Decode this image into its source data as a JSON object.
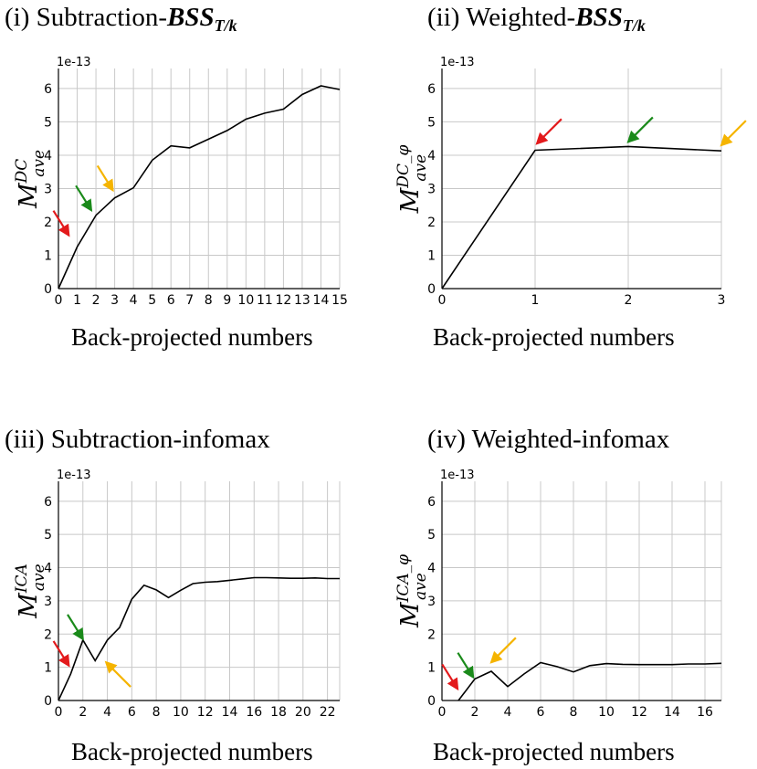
{
  "chart_data": [
    {
      "type": "line",
      "title_prefix": "(i) Subtraction-",
      "title_main": "BSS",
      "title_sub": "T/k",
      "ylabel_base": "M",
      "ylabel_sup": "DC",
      "ylabel_sub": "ave",
      "xlabel": "Back-projected numbers",
      "exponent": "1e-13",
      "x": [
        0,
        1,
        2,
        3,
        4,
        5,
        6,
        7,
        8,
        9,
        10,
        11,
        12,
        13,
        14,
        15
      ],
      "y": [
        0.0,
        1.25,
        2.2,
        2.72,
        3.02,
        3.85,
        4.28,
        4.22,
        4.48,
        4.74,
        5.08,
        5.26,
        5.38,
        5.82,
        6.08,
        5.97
      ],
      "xlim": [
        0,
        15
      ],
      "ylim": [
        0,
        6.6
      ],
      "xticks": [
        "0",
        "1",
        "2",
        "3",
        "4",
        "5",
        "6",
        "7",
        "8",
        "9",
        "10",
        "11",
        "12",
        "13",
        "14",
        "15"
      ],
      "yticks": [
        "0",
        "1",
        "2",
        "3",
        "4",
        "5",
        "6"
      ],
      "arrows": [
        {
          "color": "#e31a1c",
          "x": 0.55,
          "y": 1.6,
          "direction": "down-right"
        },
        {
          "color": "#1a8a1a",
          "x": 1.75,
          "y": 2.35,
          "direction": "down-right"
        },
        {
          "color": "#f5b400",
          "x": 2.9,
          "y": 2.95,
          "direction": "down-right"
        }
      ]
    },
    {
      "type": "line",
      "title_prefix": "(ii) Weighted-",
      "title_main": "BSS",
      "title_sub": "T/k",
      "ylabel_base": "M",
      "ylabel_sup": "DC_φ",
      "ylabel_sub": "ave",
      "xlabel": "Back-projected numbers",
      "exponent": "1e-13",
      "x": [
        0,
        1,
        2,
        3
      ],
      "y": [
        0.0,
        4.15,
        4.26,
        4.13
      ],
      "xlim": [
        0,
        3
      ],
      "ylim": [
        0,
        6.6
      ],
      "xticks": [
        "0",
        "1",
        "2",
        "3"
      ],
      "yticks": [
        "0",
        "1",
        "2",
        "3",
        "4",
        "5",
        "6"
      ],
      "arrows": [
        {
          "color": "#e31a1c",
          "x": 1.02,
          "y": 4.35,
          "direction": "down-left"
        },
        {
          "color": "#1a8a1a",
          "x": 2.0,
          "y": 4.4,
          "direction": "down-left"
        },
        {
          "color": "#f5b400",
          "x": 3.0,
          "y": 4.3,
          "direction": "down-left"
        }
      ]
    },
    {
      "type": "line",
      "title_prefix": "(iii) Subtraction-infomax",
      "title_main": "",
      "title_sub": "",
      "ylabel_base": "M",
      "ylabel_sup": "ICA",
      "ylabel_sub": "ave",
      "xlabel": "Back-projected numbers",
      "exponent": "1e-13",
      "x": [
        0,
        1,
        2,
        3,
        4,
        5,
        6,
        7,
        8,
        9,
        10,
        11,
        12,
        13,
        14,
        15,
        16,
        17,
        18,
        19,
        20,
        21,
        22,
        23
      ],
      "y": [
        0.0,
        0.8,
        1.82,
        1.2,
        1.82,
        2.2,
        3.05,
        3.47,
        3.33,
        3.1,
        3.32,
        3.52,
        3.56,
        3.58,
        3.62,
        3.66,
        3.7,
        3.7,
        3.69,
        3.68,
        3.68,
        3.69,
        3.67,
        3.67
      ],
      "xlim": [
        0,
        23
      ],
      "ylim": [
        0,
        6.6
      ],
      "xticks": [
        "0",
        "2",
        "4",
        "6",
        "8",
        "10",
        "12",
        "14",
        "16",
        "18",
        "20",
        "22"
      ],
      "xtick_values": [
        0,
        2,
        4,
        6,
        8,
        10,
        12,
        14,
        16,
        18,
        20,
        22
      ],
      "yticks": [
        "0",
        "1",
        "2",
        "3",
        "4",
        "5",
        "6"
      ],
      "arrows": [
        {
          "color": "#e31a1c",
          "x": 0.85,
          "y": 1.05,
          "direction": "down-right"
        },
        {
          "color": "#1a8a1a",
          "x": 2.0,
          "y": 1.85,
          "direction": "down-right"
        },
        {
          "color": "#f5b400",
          "x": 3.9,
          "y": 1.15,
          "direction": "up-left"
        }
      ]
    },
    {
      "type": "line",
      "title_prefix": "(iv) Weighted-infomax",
      "title_main": "",
      "title_sub": "",
      "ylabel_base": "M",
      "ylabel_sup": "ICA_φ",
      "ylabel_sub": "ave",
      "xlabel": "Back-projected numbers",
      "exponent": "1e-13",
      "x": [
        1,
        2,
        3,
        4,
        5,
        6,
        7,
        8,
        9,
        10,
        11,
        12,
        13,
        14,
        15,
        16,
        17
      ],
      "y": [
        0.0,
        0.65,
        0.88,
        0.42,
        0.8,
        1.14,
        1.02,
        0.86,
        1.05,
        1.11,
        1.09,
        1.08,
        1.08,
        1.08,
        1.1,
        1.1,
        1.12
      ],
      "xlim": [
        0,
        17
      ],
      "ylim": [
        0,
        6.6
      ],
      "xticks": [
        "0",
        "2",
        "4",
        "6",
        "8",
        "10",
        "12",
        "14",
        "16"
      ],
      "xtick_values": [
        0,
        2,
        4,
        6,
        8,
        10,
        12,
        14,
        16
      ],
      "yticks": [
        "0",
        "1",
        "2",
        "3",
        "4",
        "5",
        "6"
      ],
      "arrows": [
        {
          "color": "#e31a1c",
          "x": 0.95,
          "y": 0.35,
          "direction": "down-right"
        },
        {
          "color": "#1a8a1a",
          "x": 1.9,
          "y": 0.7,
          "direction": "down-right"
        },
        {
          "color": "#f5b400",
          "x": 3.0,
          "y": 1.15,
          "direction": "down-left"
        }
      ]
    }
  ]
}
